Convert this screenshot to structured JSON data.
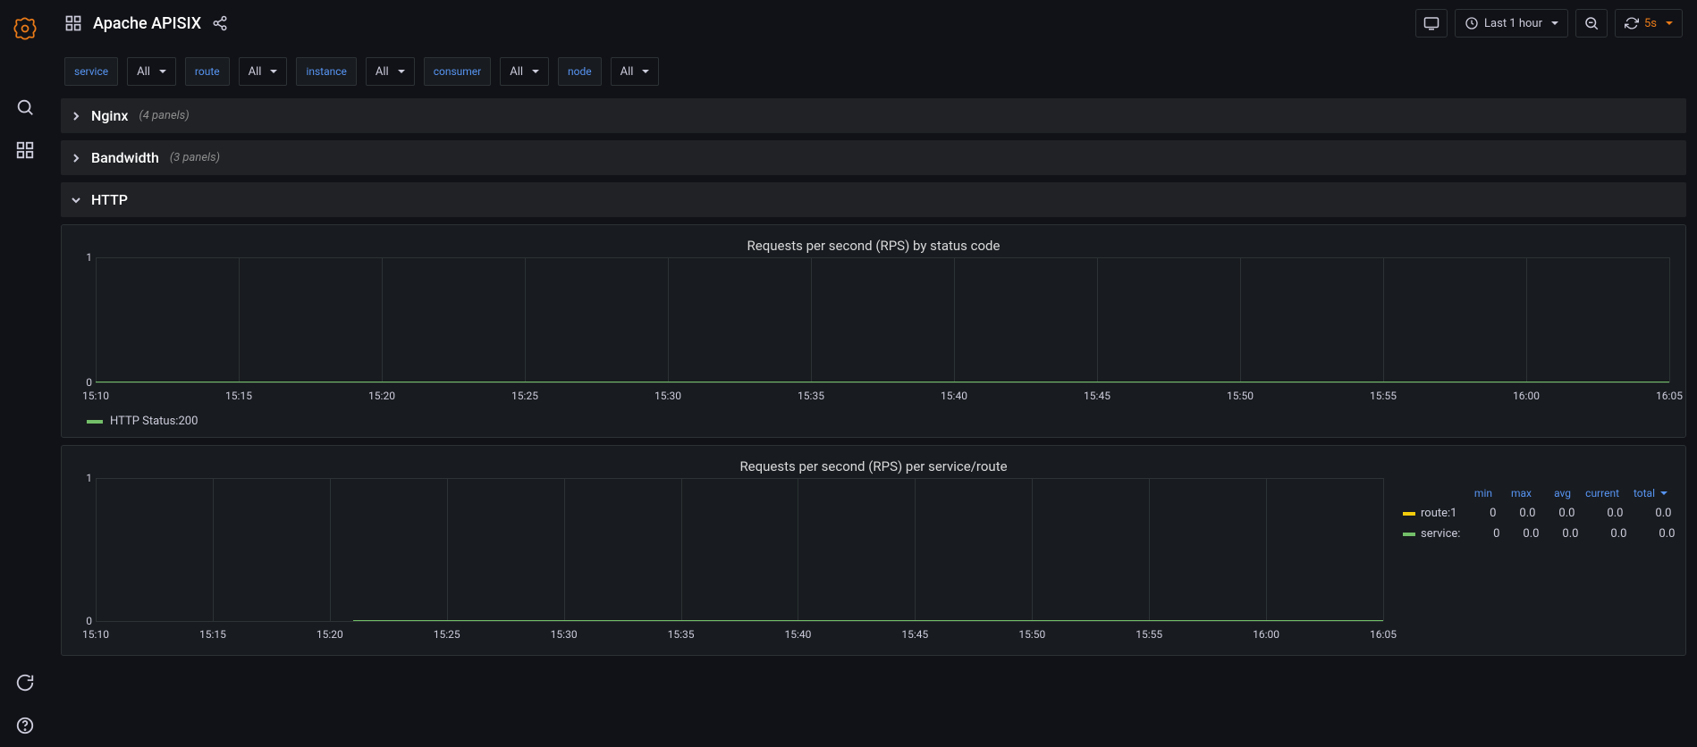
{
  "colors": {
    "accent": "#eb7b18",
    "link": "#5794f2",
    "green_series": "#73bf69",
    "yellow_series": "#f2cc0c",
    "grid": "#2c3235",
    "bg_body": "#111217",
    "bg_panel": "#181b1f"
  },
  "sidebar": {
    "icons": [
      "grafana-logo",
      "search-icon",
      "dashboards-icon",
      "cycle-icon",
      "help-icon"
    ]
  },
  "header": {
    "title": "Apache APISIX",
    "time_range": "Last 1 hour",
    "refresh_interval": "5s"
  },
  "variables": [
    {
      "label": "service",
      "value": "All"
    },
    {
      "label": "route",
      "value": "All"
    },
    {
      "label": "instance",
      "value": "All"
    },
    {
      "label": "consumer",
      "value": "All"
    },
    {
      "label": "node",
      "value": "All"
    }
  ],
  "rows": [
    {
      "name": "Nginx",
      "panels_text": "(4 panels)",
      "collapsed": true
    },
    {
      "name": "Bandwidth",
      "panels_text": "(3 panels)",
      "collapsed": true
    },
    {
      "name": "HTTP",
      "panels_text": "",
      "collapsed": false
    }
  ],
  "chart1": {
    "type": "line",
    "title": "Requests per second (RPS) by status code",
    "y_ticks": [
      "1",
      "0"
    ],
    "ylim": [
      0,
      1
    ],
    "x_ticks": [
      "15:10",
      "15:15",
      "15:20",
      "15:25",
      "15:30",
      "15:35",
      "15:40",
      "15:45",
      "15:50",
      "15:55",
      "16:00",
      "16:05"
    ],
    "series": [
      {
        "name": "HTTP Status:200",
        "color": "#73bf69",
        "flat_y": 0
      }
    ],
    "grid_color": "#2c3235",
    "background_color": "#181b1f",
    "tick_fontsize": 12,
    "title_fontsize": 15
  },
  "chart2": {
    "type": "line",
    "title": "Requests per second (RPS) per service/route",
    "y_ticks": [
      "1",
      "0"
    ],
    "ylim": [
      0,
      1
    ],
    "x_ticks": [
      "15:10",
      "15:15",
      "15:20",
      "15:25",
      "15:30",
      "15:35",
      "15:40",
      "15:45",
      "15:50",
      "15:55",
      "16:00",
      "16:05"
    ],
    "grid_color": "#2c3235",
    "background_color": "#181b1f",
    "legend_headers": [
      "min",
      "max",
      "avg",
      "current",
      "total"
    ],
    "series": [
      {
        "name": "route:1",
        "color": "#f2cc0c",
        "min": "0",
        "max": "0.0",
        "avg": "0.0",
        "current": "0.0",
        "total": "0.0",
        "start_frac": 0.2,
        "flat_y": 0
      },
      {
        "name": "service:",
        "color": "#73bf69",
        "min": "0",
        "max": "0.0",
        "avg": "0.0",
        "current": "0.0",
        "total": "0.0",
        "start_frac": 0.2,
        "flat_y": 0
      }
    ]
  }
}
